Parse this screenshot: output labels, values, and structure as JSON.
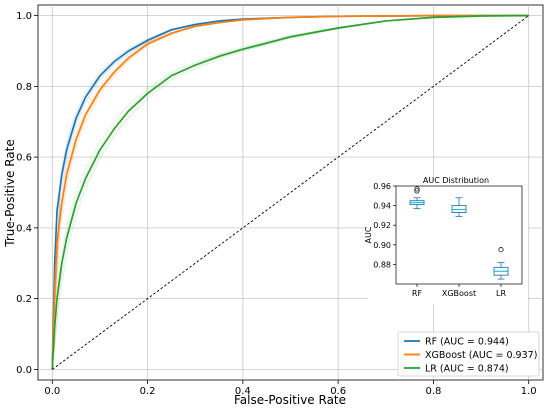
{
  "chart_data": {
    "type": "line",
    "xlabel": "False-Positive Rate",
    "ylabel": "True-Positive Rate",
    "xlim": [
      -0.03,
      1.03
    ],
    "ylim": [
      -0.03,
      1.03
    ],
    "xticks": [
      "0.0",
      "0.2",
      "0.4",
      "0.6",
      "0.8",
      "1.0"
    ],
    "yticks": [
      "0.0",
      "0.2",
      "0.4",
      "0.6",
      "0.8",
      "1.0"
    ],
    "grid": true,
    "legend_position": "bottom-right",
    "series": [
      {
        "name": "RF (AUC = 0.944)",
        "color": "#1f77b4",
        "x": [
          0,
          0.005,
          0.01,
          0.02,
          0.03,
          0.05,
          0.07,
          0.1,
          0.13,
          0.16,
          0.2,
          0.25,
          0.3,
          0.35,
          0.4,
          0.5,
          0.6,
          0.7,
          0.8,
          0.9,
          1.0
        ],
        "y": [
          0,
          0.3,
          0.45,
          0.55,
          0.62,
          0.71,
          0.77,
          0.83,
          0.87,
          0.9,
          0.93,
          0.96,
          0.975,
          0.985,
          0.99,
          0.995,
          0.998,
          0.999,
          1.0,
          1.0,
          1.0
        ]
      },
      {
        "name": "XGBoost (AUC = 0.937)",
        "color": "#ff7f0e",
        "x": [
          0,
          0.005,
          0.01,
          0.02,
          0.03,
          0.05,
          0.07,
          0.1,
          0.13,
          0.16,
          0.2,
          0.25,
          0.3,
          0.35,
          0.4,
          0.5,
          0.6,
          0.7,
          0.8,
          0.9,
          1.0
        ],
        "y": [
          0,
          0.22,
          0.36,
          0.47,
          0.55,
          0.65,
          0.72,
          0.79,
          0.84,
          0.88,
          0.92,
          0.95,
          0.97,
          0.98,
          0.988,
          0.995,
          0.998,
          0.999,
          1.0,
          1.0,
          1.0
        ]
      },
      {
        "name": "LR (AUC = 0.874)",
        "color": "#2ca02c",
        "x": [
          0,
          0.005,
          0.01,
          0.02,
          0.03,
          0.05,
          0.07,
          0.1,
          0.13,
          0.16,
          0.2,
          0.25,
          0.3,
          0.35,
          0.4,
          0.5,
          0.6,
          0.7,
          0.8,
          0.9,
          1.0
        ],
        "y": [
          0,
          0.12,
          0.2,
          0.3,
          0.37,
          0.47,
          0.54,
          0.62,
          0.68,
          0.73,
          0.78,
          0.83,
          0.86,
          0.885,
          0.905,
          0.94,
          0.965,
          0.985,
          0.995,
          0.999,
          1.0
        ]
      },
      {
        "name": "",
        "color": "#000000",
        "dashed": true,
        "x": [
          0,
          1
        ],
        "y": [
          0,
          1
        ]
      }
    ],
    "inset": {
      "type": "box",
      "title": "AUC Distribution",
      "ylabel": "AUC",
      "categories": [
        "RF",
        "XGBoost",
        "LR"
      ],
      "ylim": [
        0.86,
        0.96
      ],
      "yticks": [
        "0.88",
        "0.90",
        "0.92",
        "0.94",
        "0.96"
      ],
      "boxes": [
        {
          "whisker_low": 0.937,
          "q1": 0.941,
          "median": 0.943,
          "q3": 0.945,
          "whisker_high": 0.948,
          "outliers": [
            0.955,
            0.957
          ]
        },
        {
          "whisker_low": 0.929,
          "q1": 0.933,
          "median": 0.936,
          "q3": 0.94,
          "whisker_high": 0.948,
          "outliers": []
        },
        {
          "whisker_low": 0.865,
          "q1": 0.869,
          "median": 0.873,
          "q3": 0.877,
          "whisker_high": 0.882,
          "outliers": [
            0.895
          ]
        }
      ],
      "box_color": "#1f77b4",
      "median_color": "#17becf"
    }
  }
}
